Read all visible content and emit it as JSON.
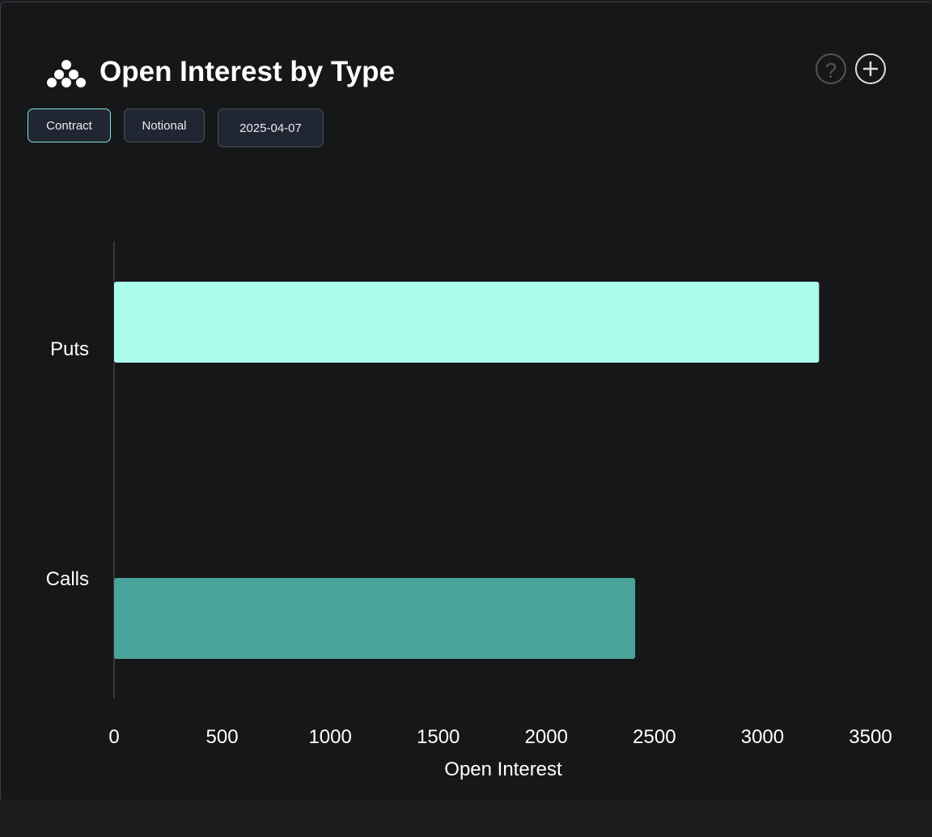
{
  "header": {
    "title": "Open Interest by Type"
  },
  "buttons": [
    "Contract",
    "Notional",
    "2025-04-07"
  ],
  "chart_data": {
    "type": "bar",
    "orientation": "horizontal",
    "categories": [
      "Puts",
      "Calls"
    ],
    "values": [
      3262,
      2411
    ],
    "colors": [
      "#aafcec",
      "#4aa39a"
    ],
    "xlim": [
      0,
      3500
    ],
    "xticks": [
      0,
      500,
      1000,
      1500,
      2000,
      2500,
      3000,
      3500
    ],
    "xlabel": "Open Interest"
  }
}
